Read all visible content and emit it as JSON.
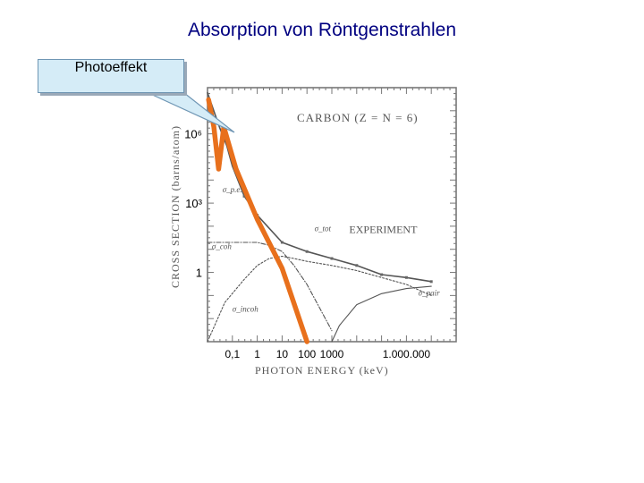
{
  "title": "Absorption von Röntgenstrahlen",
  "callout": {
    "label": "Photoeffekt"
  },
  "chart_data": {
    "type": "line",
    "title": "CARBON (Z = N = 6)",
    "xlabel": "PHOTON ENERGY (keV)",
    "ylabel": "CROSS SECTION (barns/atom)",
    "x_scale": "log",
    "y_scale": "log",
    "y_ticks": [
      {
        "value": 1000000,
        "label": "10⁶"
      },
      {
        "value": 1000,
        "label": "10³"
      },
      {
        "value": 1,
        "label": "1"
      }
    ],
    "x_ticks": [
      {
        "value": 0.1,
        "label": "0,1"
      },
      {
        "value": 1,
        "label": "1"
      },
      {
        "value": 10,
        "label": "10"
      },
      {
        "value": 100,
        "label": "100"
      },
      {
        "value": 1000,
        "label": "1000"
      },
      {
        "value": 1000000,
        "label": "1.000.000"
      }
    ],
    "xlim": [
      0.01,
      100000000
    ],
    "ylim": [
      0.001,
      100000000
    ],
    "annotations": [
      {
        "label": "σ_p.e.",
        "x": 0.04,
        "y": 3000
      },
      {
        "label": "EXPERIMENT",
        "x": 5000,
        "y": 50
      },
      {
        "label": "σ_tot",
        "x": 200,
        "y": 60
      },
      {
        "label": "σ_coh",
        "x": 0.015,
        "y": 10
      },
      {
        "label": "σ_incoh",
        "x": 0.1,
        "y": 0.02
      },
      {
        "label": "σ_pair",
        "x": 3000000,
        "y": 0.1
      }
    ],
    "highlight_color": "#e8701c",
    "series": [
      {
        "role": "photoeffekt-highlight",
        "x": [
          0.011,
          0.018,
          0.028,
          0.045,
          0.14,
          1,
          10,
          100
        ],
        "y": [
          30000000,
          2000000,
          30000,
          2000000,
          30000,
          200,
          1.5,
          0.001
        ]
      },
      {
        "role": "total",
        "x": [
          0.01,
          0.03,
          0.06,
          0.1,
          0.3,
          1,
          10,
          100,
          1000,
          10000,
          100000,
          1000000,
          10000000
        ],
        "y": [
          60000000,
          2000000,
          300000,
          40000,
          2000,
          300,
          20,
          8,
          4,
          2,
          0.8,
          0.6,
          0.4
        ]
      },
      {
        "role": "coherent",
        "x": [
          0.01,
          0.1,
          1,
          3,
          10,
          30,
          100,
          1000
        ],
        "y": [
          20,
          20,
          20,
          15,
          8,
          2,
          0.3,
          0.003
        ]
      },
      {
        "role": "incoherent",
        "x": [
          0.01,
          0.05,
          0.3,
          1,
          3,
          10,
          30,
          100,
          1000,
          10000,
          100000,
          1000000,
          10000000
        ],
        "y": [
          0.001,
          0.05,
          0.5,
          2,
          4,
          5,
          4,
          3,
          2,
          1.2,
          0.6,
          0.3,
          0.1
        ]
      },
      {
        "role": "pair",
        "x": [
          1000,
          2000,
          10000,
          100000,
          1000000,
          10000000
        ],
        "y": [
          0.001,
          0.005,
          0.04,
          0.12,
          0.2,
          0.25
        ]
      }
    ]
  }
}
